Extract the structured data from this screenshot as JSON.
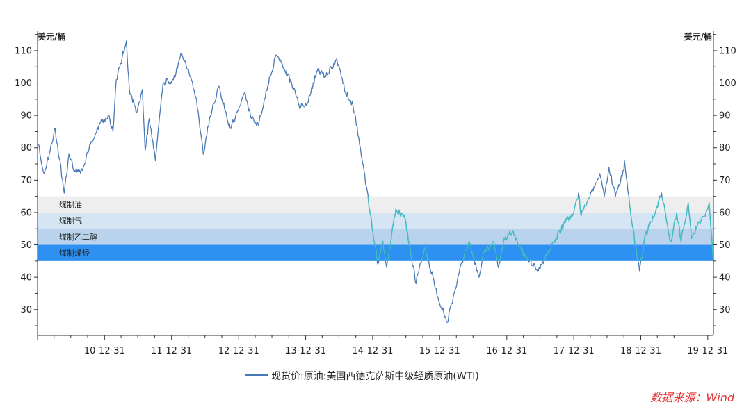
{
  "chart_data": {
    "type": "line",
    "y_unit_left": "美元/桶",
    "y_unit_right": "美元/桶",
    "ylim": [
      22,
      116
    ],
    "yticks": [
      30,
      40,
      50,
      60,
      70,
      80,
      90,
      100,
      110
    ],
    "x_tick_labels": [
      "10-12-31",
      "11-12-31",
      "12-12-31",
      "13-12-31",
      "14-12-31",
      "15-12-31",
      "16-12-31",
      "17-12-31",
      "18-12-31",
      "19-12-31"
    ],
    "x_start": "2009-12-31",
    "x_end": "2020-01-31",
    "grid": false,
    "legend_position": "bottom",
    "cost_bands": [
      {
        "label": "煤制油",
        "from": 60,
        "to": 65,
        "color": "#eeeeee"
      },
      {
        "label": "煤制气",
        "from": 55,
        "to": 60,
        "color": "#d5e5f4"
      },
      {
        "label": "煤制乙二醇",
        "from": 50,
        "to": 55,
        "color": "#b9d3ec"
      },
      {
        "label": "煤制烯烃",
        "from": 45,
        "to": 50,
        "color": "#2e90f0"
      }
    ],
    "series": [
      {
        "name": "现货价:原油:美国西德克萨斯中级轻质原油(WTI)",
        "color": "#4a79b6",
        "highlight_color": "#40c0c0",
        "points": [
          [
            "2010-01-04",
            81
          ],
          [
            "2010-02-05",
            72
          ],
          [
            "2010-04-06",
            86
          ],
          [
            "2010-05-25",
            66
          ],
          [
            "2010-06-20",
            78
          ],
          [
            "2010-07-20",
            73
          ],
          [
            "2010-09-01",
            73
          ],
          [
            "2010-10-15",
            81
          ],
          [
            "2010-12-10",
            88
          ],
          [
            "2011-01-20",
            90
          ],
          [
            "2011-02-15",
            85
          ],
          [
            "2011-03-05",
            101
          ],
          [
            "2011-04-29",
            113
          ],
          [
            "2011-05-15",
            98
          ],
          [
            "2011-06-25",
            91
          ],
          [
            "2011-07-25",
            98
          ],
          [
            "2011-08-09",
            79
          ],
          [
            "2011-09-01",
            89
          ],
          [
            "2011-10-04",
            76
          ],
          [
            "2011-11-15",
            100
          ],
          [
            "2012-01-10",
            101
          ],
          [
            "2012-02-24",
            109
          ],
          [
            "2012-04-10",
            102
          ],
          [
            "2012-05-15",
            95
          ],
          [
            "2012-06-21",
            78
          ],
          [
            "2012-07-25",
            89
          ],
          [
            "2012-09-14",
            99
          ],
          [
            "2012-10-15",
            92
          ],
          [
            "2012-11-15",
            86
          ],
          [
            "2012-12-31",
            92
          ],
          [
            "2013-02-01",
            97
          ],
          [
            "2013-03-05",
            90
          ],
          [
            "2013-04-17",
            87
          ],
          [
            "2013-05-20",
            95
          ],
          [
            "2013-07-18",
            108
          ],
          [
            "2013-08-25",
            106
          ],
          [
            "2013-10-15",
            100
          ],
          [
            "2013-11-25",
            93
          ],
          [
            "2014-01-05",
            93
          ],
          [
            "2014-03-05",
            104
          ],
          [
            "2014-04-15",
            102
          ],
          [
            "2014-06-20",
            107
          ],
          [
            "2014-08-05",
            97
          ],
          [
            "2014-09-15",
            93
          ],
          [
            "2014-10-25",
            80
          ],
          [
            "2014-11-27",
            68
          ],
          [
            "2015-01-28",
            44
          ],
          [
            "2015-02-25",
            51
          ],
          [
            "2015-03-17",
            43
          ],
          [
            "2015-05-06",
            61
          ],
          [
            "2015-06-25",
            58
          ],
          [
            "2015-08-24",
            38
          ],
          [
            "2015-10-09",
            49
          ],
          [
            "2015-11-25",
            40
          ],
          [
            "2015-12-21",
            34
          ],
          [
            "2016-02-11",
            26
          ],
          [
            "2016-04-25",
            44
          ],
          [
            "2016-06-08",
            51
          ],
          [
            "2016-08-02",
            40
          ],
          [
            "2016-08-30",
            48
          ],
          [
            "2016-10-19",
            51
          ],
          [
            "2016-11-14",
            43
          ],
          [
            "2016-12-15",
            52
          ],
          [
            "2017-01-30",
            54
          ],
          [
            "2017-03-22",
            48
          ],
          [
            "2017-05-05",
            45
          ],
          [
            "2017-06-21",
            42
          ],
          [
            "2017-08-15",
            48
          ],
          [
            "2017-09-25",
            52
          ],
          [
            "2017-11-15",
            57
          ],
          [
            "2017-12-31",
            60
          ],
          [
            "2018-01-26",
            66
          ],
          [
            "2018-02-09",
            59
          ],
          [
            "2018-04-20",
            68
          ],
          [
            "2018-05-22",
            72
          ],
          [
            "2018-06-15",
            65
          ],
          [
            "2018-07-10",
            74
          ],
          [
            "2018-08-15",
            65
          ],
          [
            "2018-09-30",
            73
          ],
          [
            "2018-10-03",
            76
          ],
          [
            "2018-11-15",
            56
          ],
          [
            "2018-12-24",
            42
          ],
          [
            "2019-01-25",
            53
          ],
          [
            "2019-03-15",
            59
          ],
          [
            "2019-04-23",
            66
          ],
          [
            "2019-06-12",
            51
          ],
          [
            "2019-07-15",
            60
          ],
          [
            "2019-08-07",
            51
          ],
          [
            "2019-09-16",
            63
          ],
          [
            "2019-10-03",
            52
          ],
          [
            "2019-11-15",
            57
          ],
          [
            "2019-12-31",
            61
          ],
          [
            "2020-01-08",
            63
          ],
          [
            "2020-01-31",
            44
          ]
        ]
      }
    ]
  },
  "source": {
    "text": "数据来源：Wind"
  }
}
